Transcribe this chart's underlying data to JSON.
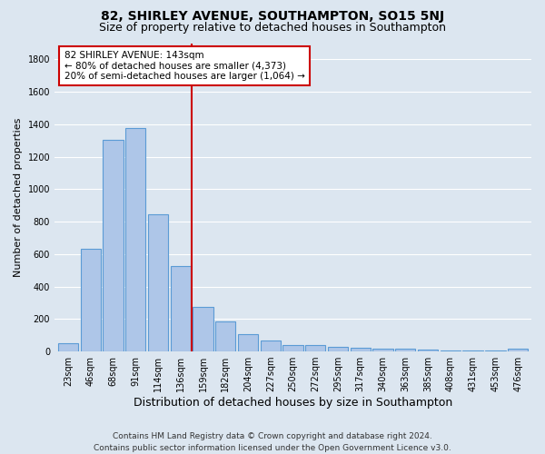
{
  "title": "82, SHIRLEY AVENUE, SOUTHAMPTON, SO15 5NJ",
  "subtitle": "Size of property relative to detached houses in Southampton",
  "xlabel": "Distribution of detached houses by size in Southampton",
  "ylabel": "Number of detached properties",
  "footer_line1": "Contains HM Land Registry data © Crown copyright and database right 2024.",
  "footer_line2": "Contains public sector information licensed under the Open Government Licence v3.0.",
  "bar_labels": [
    "23sqm",
    "46sqm",
    "68sqm",
    "91sqm",
    "114sqm",
    "136sqm",
    "159sqm",
    "182sqm",
    "204sqm",
    "227sqm",
    "250sqm",
    "272sqm",
    "295sqm",
    "317sqm",
    "340sqm",
    "363sqm",
    "385sqm",
    "408sqm",
    "431sqm",
    "453sqm",
    "476sqm"
  ],
  "bar_values": [
    50,
    635,
    1305,
    1375,
    845,
    525,
    275,
    185,
    105,
    65,
    40,
    40,
    30,
    25,
    20,
    15,
    10,
    5,
    5,
    5,
    15
  ],
  "bar_color": "#aec6e8",
  "bar_edge_color": "#5b9bd5",
  "annotation_text_line1": "82 SHIRLEY AVENUE: 143sqm",
  "annotation_text_line2": "← 80% of detached houses are smaller (4,373)",
  "annotation_text_line3": "20% of semi-detached houses are larger (1,064) →",
  "annotation_box_color": "#ffffff",
  "annotation_box_edge_color": "#cc0000",
  "vline_color": "#cc0000",
  "vline_x_index": 5.5,
  "ylim_max": 1900,
  "yticks": [
    0,
    200,
    400,
    600,
    800,
    1000,
    1200,
    1400,
    1600,
    1800
  ],
  "bg_color": "#dce6f0",
  "plot_bg_color": "#dce6f0",
  "grid_color": "#ffffff",
  "title_fontsize": 10,
  "subtitle_fontsize": 9,
  "xlabel_fontsize": 9,
  "ylabel_fontsize": 8,
  "tick_fontsize": 7,
  "annotation_fontsize": 7.5,
  "footer_fontsize": 6.5
}
